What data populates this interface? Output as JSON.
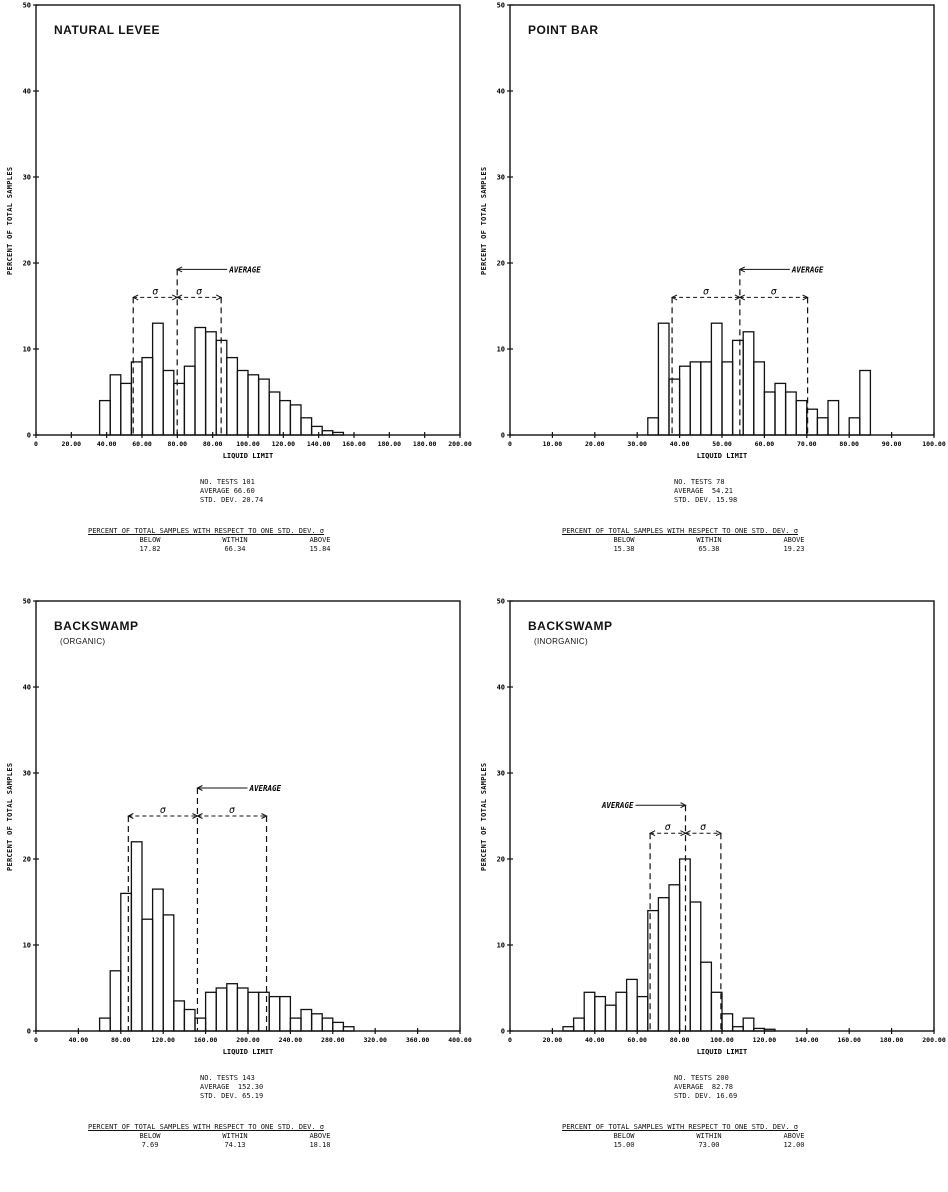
{
  "chart_data": [
    {
      "type": "bar",
      "title": "NATURAL LEVEE",
      "subtitle": "",
      "xlabel": "LIQUID LIMIT",
      "ylabel": "PERCENT OF TOTAL SAMPLES",
      "xlim": [
        0,
        200
      ],
      "ylim": [
        0,
        50
      ],
      "xticks": [
        "0",
        "20.00",
        "40.00",
        "60.00",
        "80.00",
        "80.00",
        "100.00",
        "120.00",
        "140.00",
        "160.00",
        "180.00",
        "180.00",
        "200.00"
      ],
      "yticks": [
        "0",
        "10",
        "20",
        "30",
        "40",
        "50"
      ],
      "bin_width": 5,
      "bin_start": 30,
      "values": [
        4.0,
        7.0,
        6.0,
        8.5,
        9.0,
        13.0,
        7.5,
        6.0,
        8.0,
        12.5,
        12.0,
        11.0,
        9.0,
        7.5,
        7.0,
        6.5,
        5.0,
        4.0,
        3.5,
        2.0,
        1.0,
        0.5,
        0.3,
        0
      ],
      "average": 66.6,
      "std_dev": 20.74,
      "average_label": "AVERAGE",
      "sigma_label": "σ",
      "stats": {
        "tests": "NO. TESTS 101",
        "average": "AVERAGE 66.60",
        "std": "STD. DEV. 20.74"
      },
      "percent_title": "PERCENT OF TOTAL SAMPLES WITH RESPECT TO ONE STD. DEV. σ",
      "percent_headers": [
        "BELOW",
        "WITHIN",
        "ABOVE"
      ],
      "percent_values": [
        "17.82",
        "66.34",
        "15.84"
      ]
    },
    {
      "type": "bar",
      "title": "POINT BAR",
      "subtitle": "",
      "xlabel": "LIQUID LIMIT",
      "ylabel": "PERCENT OF TOTAL SAMPLES",
      "xlim": [
        0,
        100
      ],
      "ylim": [
        0,
        50
      ],
      "xticks": [
        "0",
        "10.00",
        "20.00",
        "30.00",
        "40.00",
        "50.00",
        "60.00",
        "70.00",
        "80.00",
        "90.00",
        "100.00"
      ],
      "yticks": [
        "0",
        "10",
        "20",
        "30",
        "40",
        "50"
      ],
      "bin_width": 2.5,
      "bin_start": 32.5,
      "values": [
        2.0,
        13.0,
        6.5,
        8.0,
        8.5,
        8.5,
        13.0,
        8.5,
        11.0,
        12.0,
        8.5,
        5.0,
        6.0,
        5.0,
        4.0,
        3.0,
        2.0,
        4.0,
        0,
        2.0,
        7.5,
        0
      ],
      "average": 54.21,
      "std_dev": 15.98,
      "average_label": "AVERAGE",
      "sigma_label": "σ",
      "stats": {
        "tests": "NO. TESTS 78",
        "average": "AVERAGE  54.21",
        "std": "STD. DEV. 15.98"
      },
      "percent_title": "PERCENT OF TOTAL SAMPLES WITH RESPECT TO ONE STD. DEV. σ",
      "percent_headers": [
        "BELOW",
        "WITHIN",
        "ABOVE"
      ],
      "percent_values": [
        "15.38",
        "65.38",
        "19.23"
      ]
    },
    {
      "type": "bar",
      "title": "BACKSWAMP",
      "subtitle": "(ORGANIC)",
      "xlabel": "LIQUID LIMIT",
      "ylabel": "PERCENT OF TOTAL SAMPLES",
      "xlim": [
        0,
        400
      ],
      "ylim": [
        0,
        50
      ],
      "xticks": [
        "0",
        "40.00",
        "80.00",
        "120.00",
        "160.00",
        "200.00",
        "240.00",
        "280.00",
        "320.00",
        "360.00",
        "400.00"
      ],
      "yticks": [
        "0",
        "10",
        "20",
        "30",
        "40",
        "50"
      ],
      "bin_width": 10,
      "bin_start": 60,
      "values": [
        1.5,
        7.0,
        16.0,
        22.0,
        13.0,
        16.5,
        13.5,
        3.5,
        2.5,
        1.5,
        4.5,
        5.0,
        5.5,
        5.0,
        4.5,
        4.5,
        4.0,
        4.0,
        1.5,
        2.5,
        2.0,
        1.5,
        1.0,
        0.5,
        0
      ],
      "average": 152.3,
      "std_dev": 65.19,
      "average_label": "AVERAGE",
      "sigma_label": "σ",
      "stats": {
        "tests": "NO. TESTS 143",
        "average": "AVERAGE  152.30",
        "std": "STD. DEV. 65.19"
      },
      "percent_title": "PERCENT OF TOTAL SAMPLES WITH RESPECT TO ONE STD. DEV. σ",
      "percent_headers": [
        "BELOW",
        "WITHIN",
        "ABOVE"
      ],
      "percent_values": [
        "7.69",
        "74.13",
        "18.18"
      ]
    },
    {
      "type": "bar",
      "title": "BACKSWAMP",
      "subtitle": "(INORGANIC)",
      "xlabel": "LIQUID LIMIT",
      "ylabel": "PERCENT OF TOTAL SAMPLES",
      "xlim": [
        0,
        200
      ],
      "ylim": [
        0,
        50
      ],
      "xticks": [
        "0",
        "20.00",
        "40.00",
        "60.00",
        "80.00",
        "100.00",
        "120.00",
        "140.00",
        "160.00",
        "180.00",
        "200.00"
      ],
      "yticks": [
        "0",
        "10",
        "20",
        "30",
        "40",
        "50"
      ],
      "bin_width": 5,
      "bin_start": 25,
      "values": [
        0.5,
        1.5,
        4.5,
        4.0,
        3.0,
        4.5,
        6.0,
        4.0,
        14.0,
        15.5,
        17.0,
        20.0,
        15.0,
        8.0,
        4.5,
        2.0,
        0.5,
        1.5,
        0.3,
        0.2,
        0
      ],
      "average": 82.78,
      "std_dev": 16.69,
      "average_label": "AVERAGE",
      "sigma_label": "σ",
      "stats": {
        "tests": "NO. TESTS 200",
        "average": "AVERAGE  82.78",
        "std": "STD. DEV. 16.69"
      },
      "percent_title": "PERCENT OF TOTAL SAMPLES WITH RESPECT TO ONE STD. DEV. σ",
      "percent_headers": [
        "BELOW",
        "WITHIN",
        "ABOVE"
      ],
      "percent_values": [
        "15.00",
        "73.00",
        "12.00"
      ]
    }
  ]
}
